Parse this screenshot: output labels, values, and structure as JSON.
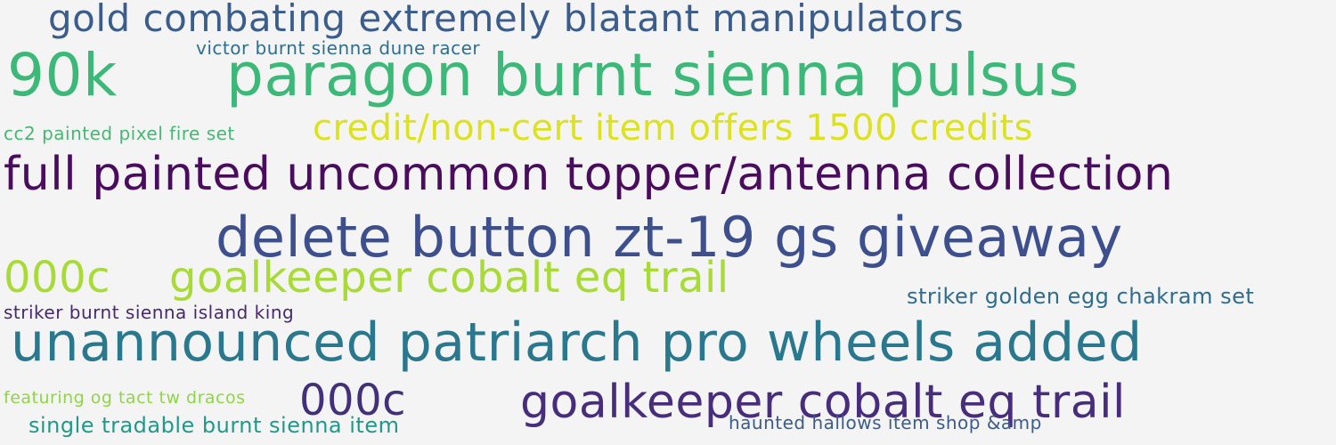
{
  "words": [
    {
      "text": "gold combating extremely blatant manipulators",
      "color": "#3b5d8c"
    },
    {
      "text": "victor burnt sienna dune racer",
      "color": "#2d6f8e"
    },
    {
      "text": "90k",
      "color": "#3cb878"
    },
    {
      "text": "paragon burnt sienna pulsus",
      "color": "#3cb878"
    },
    {
      "text": "cc2 painted pixel fire set",
      "color": "#45b873"
    },
    {
      "text": "credit/non-cert item offers 1500 credits",
      "color": "#dde21e"
    },
    {
      "text": "full painted uncommon topper/antenna collection",
      "color": "#4a0c5c"
    },
    {
      "text": "delete button zt-19 gs giveaway",
      "color": "#3d4f8c"
    },
    {
      "text": "000c",
      "color": "#a8db35"
    },
    {
      "text": "goalkeeper cobalt eq trail",
      "color": "#a8db35"
    },
    {
      "text": "striker golden egg chakram set",
      "color": "#2f6c8e"
    },
    {
      "text": "striker burnt sienna island king",
      "color": "#472a6e"
    },
    {
      "text": "unannounced patriarch pro wheels added",
      "color": "#2a788e"
    },
    {
      "text": "featuring og tact tw dracos",
      "color": "#8ed645"
    },
    {
      "text": "000c",
      "color": "#43307a"
    },
    {
      "text": "goalkeeper cobalt eq trail",
      "color": "#472d7b"
    },
    {
      "text": "single tradable burnt sienna item",
      "color": "#1f9a8a"
    },
    {
      "text": "haunted hallows item shop &amp",
      "color": "#3b5b8c"
    }
  ]
}
